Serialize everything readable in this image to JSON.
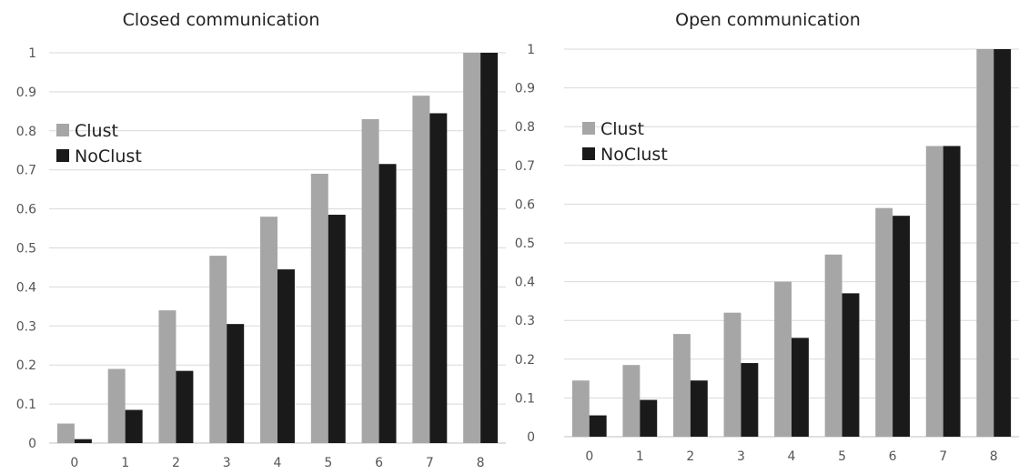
{
  "chart_data": [
    {
      "type": "bar",
      "title": "Closed communication",
      "xlabel": "",
      "ylabel": "",
      "categories": [
        "0",
        "1",
        "2",
        "3",
        "4",
        "5",
        "6",
        "7",
        "8"
      ],
      "ylim": [
        0,
        1
      ],
      "yticks": [
        "0",
        "0.1",
        "0.2",
        "0.3",
        "0.4",
        "0.5",
        "0.6",
        "0.7",
        "0.8",
        "0.9",
        "1"
      ],
      "grid": true,
      "legend_position": "left",
      "series": [
        {
          "name": "Clust",
          "color": "#a6a6a6",
          "values": [
            0.05,
            0.19,
            0.34,
            0.48,
            0.58,
            0.69,
            0.83,
            0.89,
            1.0
          ]
        },
        {
          "name": "NoClust",
          "color": "#1a1a1a",
          "values": [
            0.01,
            0.085,
            0.185,
            0.305,
            0.445,
            0.585,
            0.715,
            0.845,
            1.0
          ]
        }
      ]
    },
    {
      "type": "bar",
      "title": "Open communication",
      "xlabel": "",
      "ylabel": "",
      "categories": [
        "0",
        "1",
        "2",
        "3",
        "4",
        "5",
        "6",
        "7",
        "8"
      ],
      "ylim": [
        0,
        1
      ],
      "yticks": [
        "0",
        "0.1",
        "0.2",
        "0.3",
        "0.4",
        "0.5",
        "0.6",
        "0.7",
        "0.8",
        "0.9",
        "1"
      ],
      "grid": true,
      "legend_position": "left",
      "series": [
        {
          "name": "Clust",
          "color": "#a6a6a6",
          "values": [
            0.145,
            0.185,
            0.265,
            0.32,
            0.4,
            0.47,
            0.59,
            0.75,
            1.0
          ]
        },
        {
          "name": "NoClust",
          "color": "#1a1a1a",
          "values": [
            0.055,
            0.095,
            0.145,
            0.19,
            0.255,
            0.37,
            0.57,
            0.75,
            1.0
          ]
        }
      ]
    }
  ]
}
